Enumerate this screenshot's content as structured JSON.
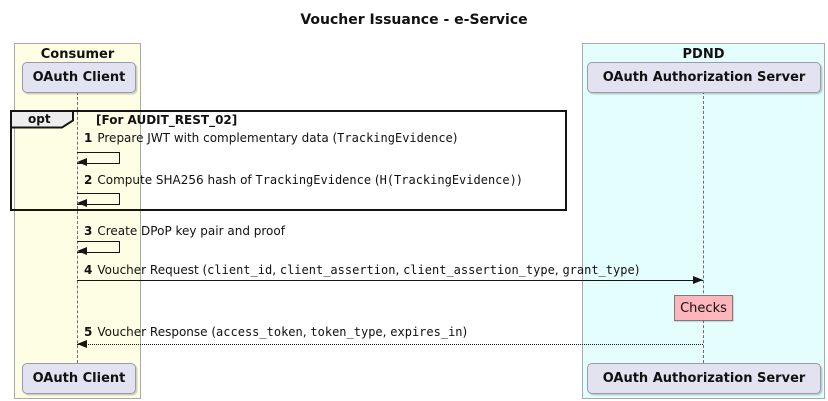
{
  "title": "Voucher Issuance - e-Service",
  "groups": [
    {
      "label": "Consumer",
      "participant_top": "OAuth Client",
      "participant_bottom": "OAuth Client"
    },
    {
      "label": "PDND",
      "participant_top": "OAuth Authorization Server",
      "participant_bottom": "OAuth Authorization Server"
    }
  ],
  "fragment": {
    "operator": "opt",
    "guard": "[For AUDIT_REST_02]"
  },
  "messages": [
    {
      "num": "1",
      "kind": "self",
      "segments": [
        {
          "text": "Prepare JWT with complementary data ("
        },
        {
          "text": "TrackingEvidence",
          "mono": true
        },
        {
          "text": ")"
        }
      ]
    },
    {
      "num": "2",
      "kind": "self",
      "segments": [
        {
          "text": "Compute SHA256 hash of "
        },
        {
          "text": "TrackingEvidence",
          "mono": true
        },
        {
          "text": " ("
        },
        {
          "text": "H(TrackingEvidence)",
          "mono": true
        },
        {
          "text": ")"
        }
      ]
    },
    {
      "num": "3",
      "kind": "self",
      "segments": [
        {
          "text": "Create DPoP key pair and proof"
        }
      ]
    },
    {
      "num": "4",
      "kind": "solid-right",
      "segments": [
        {
          "text": "Voucher Request ("
        },
        {
          "text": "client_id",
          "mono": true
        },
        {
          "text": ", "
        },
        {
          "text": "client_assertion",
          "mono": true
        },
        {
          "text": ", "
        },
        {
          "text": "client_assertion_type",
          "mono": true
        },
        {
          "text": ", "
        },
        {
          "text": "grant_type",
          "mono": true
        },
        {
          "text": ")"
        }
      ]
    },
    {
      "num": "5",
      "kind": "dashed-left",
      "segments": [
        {
          "text": "Voucher Response ("
        },
        {
          "text": "access_token",
          "mono": true
        },
        {
          "text": ", "
        },
        {
          "text": "token_type",
          "mono": true
        },
        {
          "text": ", "
        },
        {
          "text": "expires_in",
          "mono": true
        },
        {
          "text": ")"
        }
      ]
    }
  ],
  "note": {
    "label": "Checks"
  },
  "colors": {
    "consumer_fill": "#FEFEE4",
    "pdnd_fill": "#E4FDFD",
    "group_border": "#A9A9A9",
    "participant_fill": "#E2E2F0",
    "participant_border": "#9A9AAE",
    "note_fill": "#FFB5BC",
    "note_border": "#7A7A7A",
    "line": "#161616",
    "fragment_fill": "#EDEDED"
  }
}
